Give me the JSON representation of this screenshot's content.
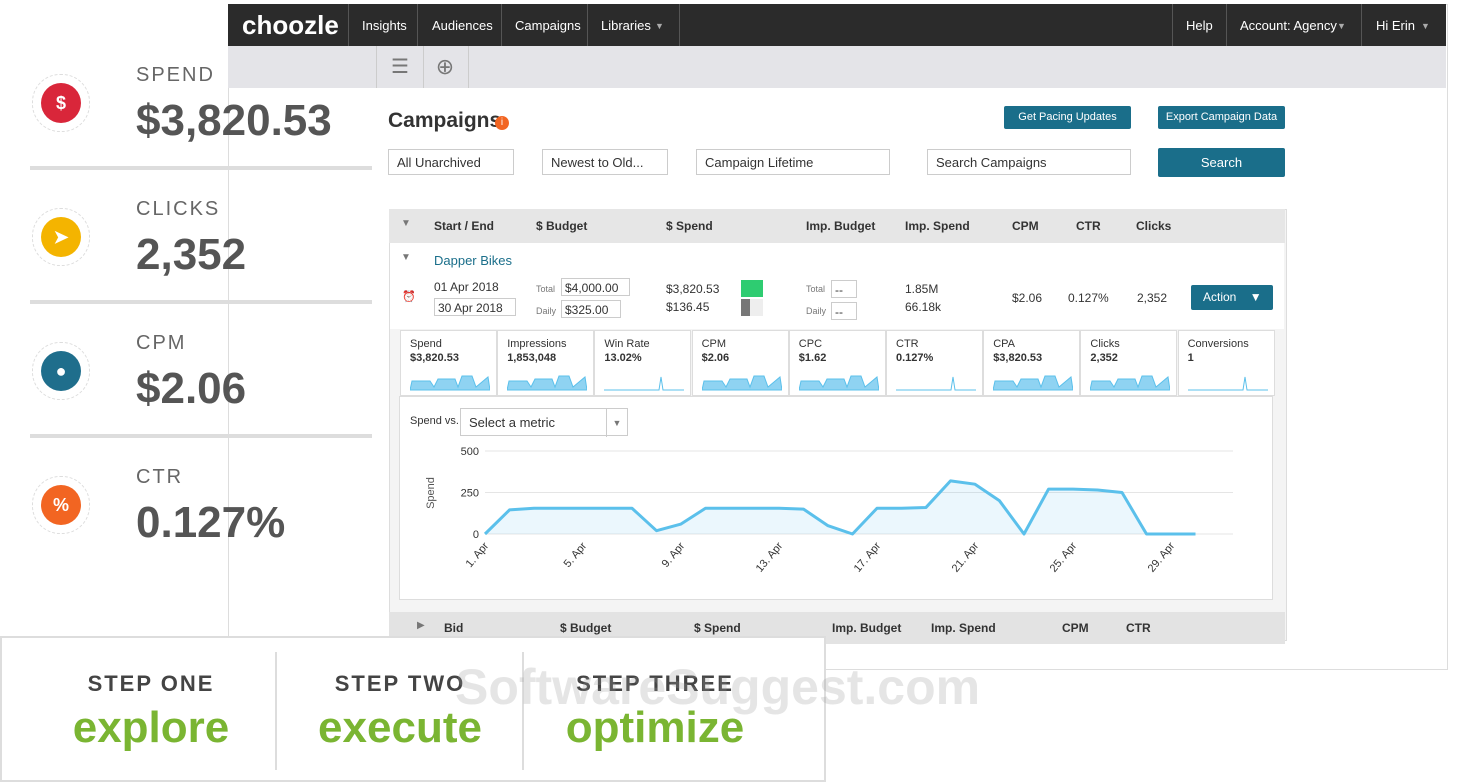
{
  "stats": [
    {
      "icon": "$",
      "label": "SPEND",
      "value": "$3,820.53"
    },
    {
      "label": "CLICKS",
      "value": "2,352"
    },
    {
      "label": "CPM",
      "value": "$2.06"
    },
    {
      "icon": "%",
      "label": "CTR",
      "value": "0.127%"
    }
  ],
  "nav": {
    "logo": "choozle",
    "items": [
      "Insights",
      "Audiences",
      "Campaigns",
      "Libraries"
    ],
    "right": [
      "Help",
      "Account: Agency",
      "Hi Erin"
    ]
  },
  "page": {
    "title": "Campaigns",
    "buttons": [
      "Get Pacing Updates",
      "Export Campaign Data"
    ],
    "filters": [
      "All Unarchived",
      "Newest to Old...",
      "Campaign Lifetime"
    ],
    "search_placeholder": "Search Campaigns",
    "search_button": "Search"
  },
  "table": {
    "headers": [
      "Start / End",
      "$ Budget",
      "$ Spend",
      "Imp. Budget",
      "Imp. Spend",
      "CPM",
      "CTR",
      "Clicks"
    ],
    "campaign": {
      "name": "Dapper Bikes",
      "start": "01 Apr 2018",
      "end": "30 Apr 2018",
      "total_label": "Total",
      "daily_label": "Daily",
      "budget_total": "$4,000.00",
      "budget_daily": "$325.00",
      "spend_total": "$3,820.53",
      "spend_daily": "$136.45",
      "imp_budget_total": "--",
      "imp_budget_daily": "--",
      "imp_spend_total": "1.85M",
      "imp_spend_daily": "66.18k",
      "cpm": "$2.06",
      "ctr": "0.127%",
      "clicks": "2,352",
      "action": "Action"
    }
  },
  "metrics": [
    {
      "name": "Spend",
      "value": "$3,820.53"
    },
    {
      "name": "Impressions",
      "value": "1,853,048"
    },
    {
      "name": "Win Rate",
      "value": "13.02%"
    },
    {
      "name": "CPM",
      "value": "$2.06"
    },
    {
      "name": "CPC",
      "value": "$1.62"
    },
    {
      "name": "CTR",
      "value": "0.127%"
    },
    {
      "name": "CPA",
      "value": "$3,820.53"
    },
    {
      "name": "Clicks",
      "value": "2,352"
    },
    {
      "name": "Conversions",
      "value": "1"
    }
  ],
  "chart": {
    "type": "line",
    "select_label": "Spend vs.",
    "select": "Select a metric",
    "y_label": "Spend",
    "ylim": [
      0,
      500
    ],
    "yticks": [
      0,
      250,
      500
    ],
    "color": "#5bc0eb",
    "x": [
      "1. Apr",
      null,
      null,
      null,
      "5. Apr",
      null,
      null,
      null,
      "9. Apr",
      null,
      null,
      null,
      "13. Apr",
      null,
      null,
      null,
      "17. Apr",
      null,
      null,
      null,
      "21. Apr",
      null,
      null,
      null,
      "25. Apr",
      null,
      null,
      null,
      "29. Apr",
      null
    ],
    "values": [
      0,
      145,
      155,
      155,
      155,
      155,
      155,
      20,
      60,
      155,
      155,
      155,
      155,
      150,
      50,
      0,
      155,
      155,
      160,
      320,
      300,
      200,
      0,
      270,
      270,
      265,
      250,
      0,
      0,
      0
    ]
  },
  "subtable": {
    "headers": [
      "Bid",
      "$ Budget",
      "$ Spend",
      "Imp. Budget",
      "Imp. Spend",
      "CPM",
      "CTR"
    ]
  },
  "steps": [
    {
      "label": "STEP ONE",
      "word": "explore"
    },
    {
      "label": "STEP TWO",
      "word": "execute"
    },
    {
      "label": "STEP THREE",
      "word": "optimize"
    }
  ],
  "watermark": "SoftwareSuggest.com"
}
